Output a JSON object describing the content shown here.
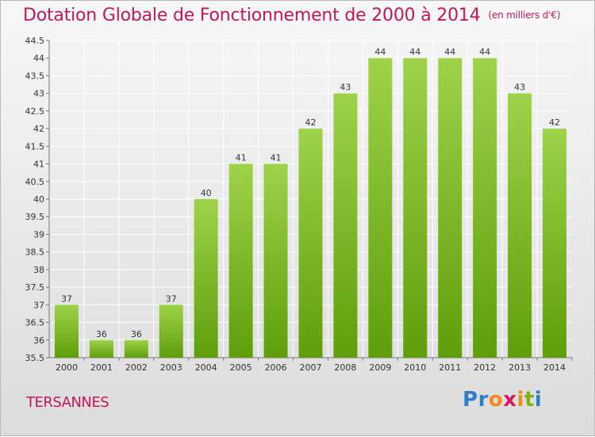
{
  "header": {
    "title": "Dotation Globale de Fonctionnement de 2000 à 2014",
    "unit": "(en milliers d'€)"
  },
  "footer": {
    "commune": "TERSANNES",
    "logo_text": "Proxiti"
  },
  "colors": {
    "title": "#c2185b",
    "bar_light": "#9ed24a",
    "bar_dark": "#5f9e0a",
    "grid": "#ffffff",
    "axis": "#777777"
  },
  "chart_data": {
    "type": "bar",
    "title": "Dotation Globale de Fonctionnement de 2000 à 2014",
    "subtitle": "(en milliers d'€)",
    "xlabel": "",
    "ylabel": "",
    "categories": [
      "2000",
      "2001",
      "2002",
      "2003",
      "2004",
      "2005",
      "2006",
      "2007",
      "2008",
      "2009",
      "2010",
      "2011",
      "2012",
      "2013",
      "2014"
    ],
    "values": [
      37,
      36,
      36,
      37,
      40,
      41,
      41,
      42,
      43,
      44,
      44,
      44,
      44,
      43,
      42
    ],
    "data_labels": [
      "37",
      "36",
      "36",
      "37",
      "40",
      "41",
      "41",
      "42",
      "43",
      "44",
      "44",
      "44",
      "44",
      "43",
      "42"
    ],
    "ylim": [
      35.5,
      44.5
    ],
    "yticks": [
      35.5,
      36,
      36.5,
      37,
      37.5,
      38,
      38.5,
      39,
      39.5,
      40,
      40.5,
      41,
      41.5,
      42,
      42.5,
      43,
      43.5,
      44,
      44.5
    ],
    "ytick_labels": [
      "35.5",
      "36",
      "36.5",
      "37",
      "37.5",
      "38",
      "38.5",
      "39",
      "39.5",
      "40",
      "40.5",
      "41",
      "41.5",
      "42",
      "42.5",
      "43",
      "43.5",
      "44",
      "44.5"
    ],
    "grid": true,
    "legend": "none"
  }
}
